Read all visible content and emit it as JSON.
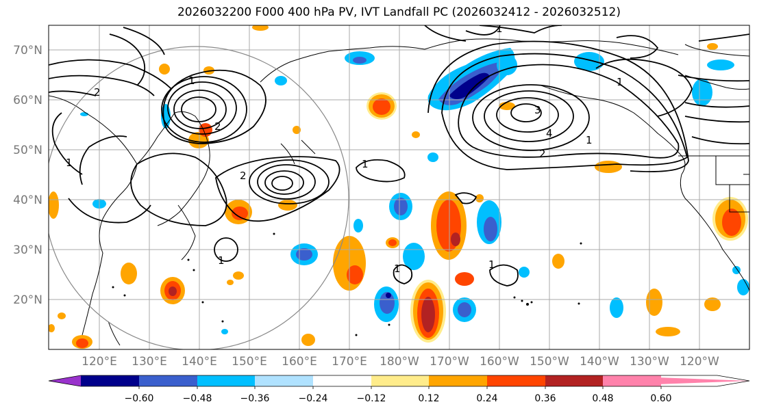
{
  "title": "2026032200 F000 400 hPa PV, IVT Landfall PC (2026032412 - 2026032512)",
  "lat_labels": [
    "70°N",
    "60°N",
    "50°N",
    "40°N",
    "30°N",
    "20°N"
  ],
  "lon_labels": [
    "120°E",
    "130°E",
    "140°E",
    "150°E",
    "160°E",
    "170°E",
    "180°W",
    "170°W",
    "160°W",
    "150°W",
    "140°W",
    "130°W",
    "120°W"
  ],
  "colorbar": {
    "ticks": [
      "−0.60",
      "−0.48",
      "−0.36",
      "−0.24",
      "−0.12",
      "0.12",
      "0.24",
      "0.36",
      "0.48",
      "0.60"
    ],
    "colors": [
      "#9932CC",
      "#00008B",
      "#3A5FCD",
      "#00BFFF",
      "#B0E2FF",
      "#FFFFFF",
      "#FFEC8B",
      "#FFA500",
      "#FF4500",
      "#B22222",
      "#FF82AB"
    ]
  },
  "contour_labels": {
    "western_low_1": "1",
    "western_low_2": "2",
    "western_ring": "2",
    "eastern_low_3": "3",
    "eastern_low_4": "4",
    "eastern_outer": "1",
    "eastern_ring": "2",
    "eastern_top": "1",
    "northeast": "1",
    "central": "1",
    "south_1": "1",
    "south_2": "1",
    "southwest": "1",
    "far_west": "1",
    "far_west_2": "2"
  }
}
